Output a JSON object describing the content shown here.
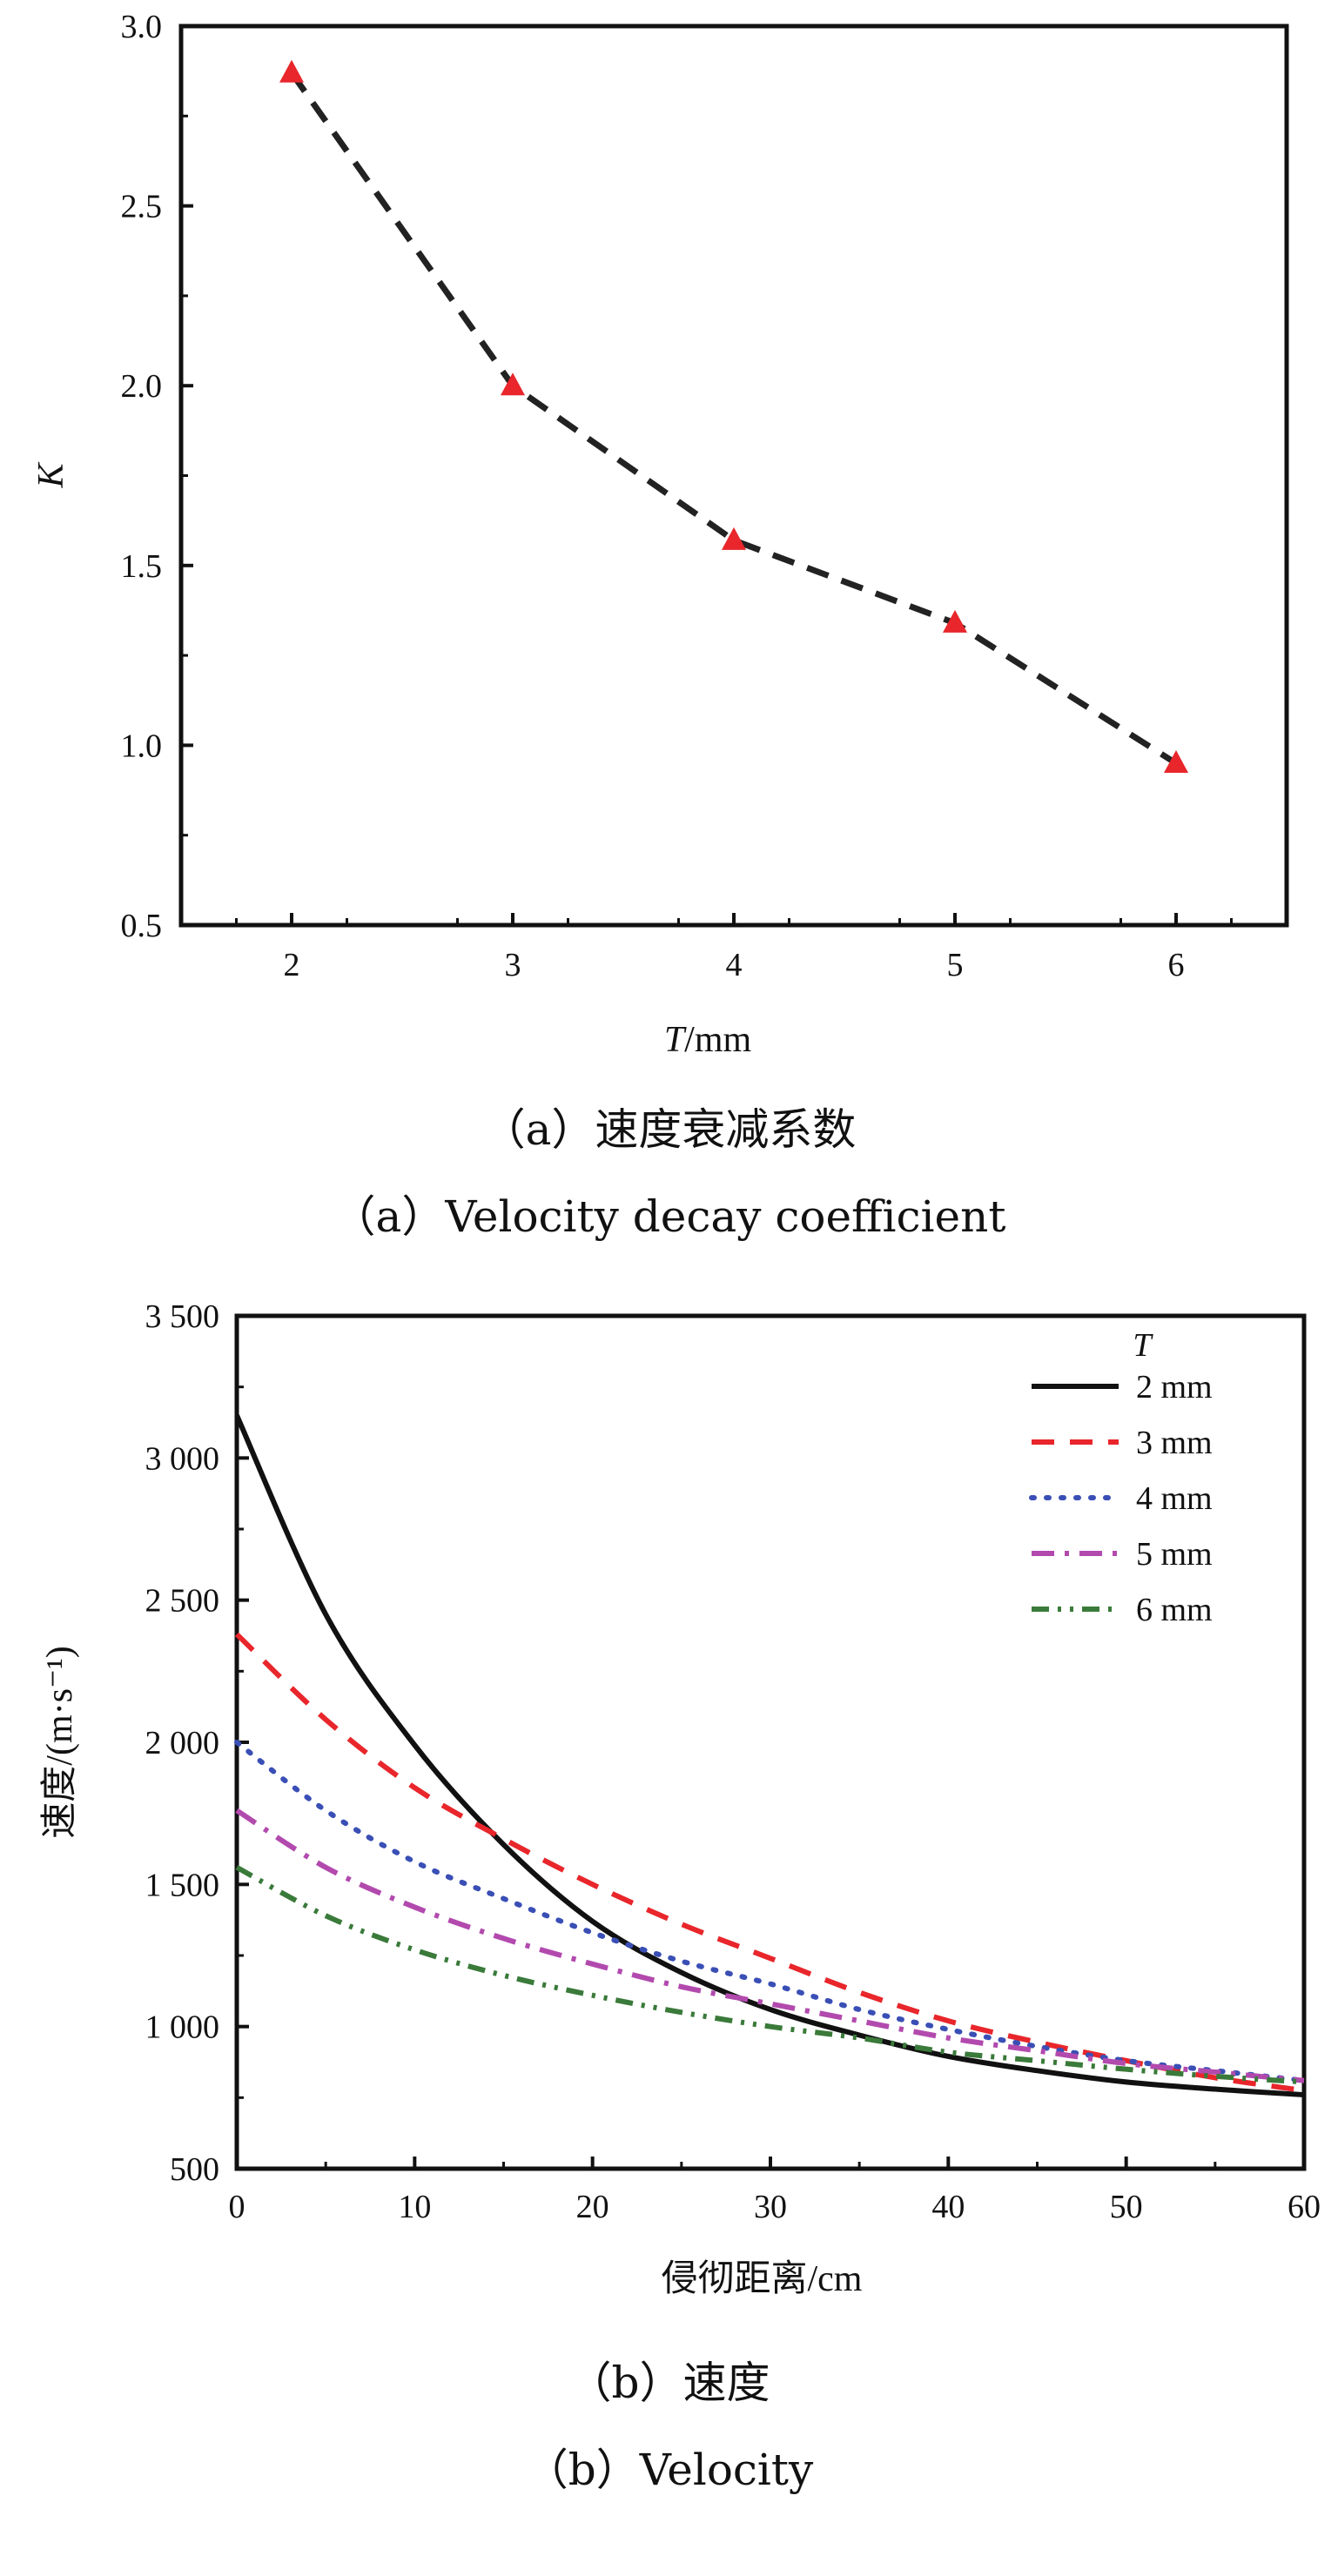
{
  "captions": {
    "a_cn": "（a）速度衰减系数",
    "a_en": "（a）Velocity decay coefficient",
    "b_cn": "（b）速度",
    "b_en": "（b）Velocity"
  },
  "chart_data": [
    {
      "type": "line",
      "xlabel_italic": "T",
      "xlabel_unit": "/mm",
      "ylabel": "K",
      "xlim": [
        1.5,
        6.5
      ],
      "ylim": [
        0.5,
        3.0
      ],
      "xticks": [
        "2",
        "3",
        "4",
        "5",
        "6"
      ],
      "yticks": [
        "0.5",
        "1.0",
        "1.5",
        "2.0",
        "2.5",
        "3.0"
      ],
      "x": [
        2,
        3,
        4,
        5,
        6
      ],
      "y": [
        2.87,
        2.0,
        1.57,
        1.34,
        0.95
      ],
      "line_color": "#222222",
      "marker_color": "#e8262b",
      "line_style": "dashed",
      "marker": "triangle",
      "grid": false
    },
    {
      "type": "line",
      "xlabel": "侵彻距离/cm",
      "ylabel": "速度/(m·s⁻¹)",
      "xlim": [
        0,
        60
      ],
      "ylim": [
        500,
        3500
      ],
      "xticks": [
        "0",
        "10",
        "20",
        "30",
        "40",
        "50",
        "60"
      ],
      "yticks": [
        "500",
        "1 000",
        "1 500",
        "2 000",
        "2 500",
        "3 000",
        "3 500"
      ],
      "legend_title": "T",
      "legend_position": "top-right",
      "grid": false,
      "series": [
        {
          "name": "2 mm",
          "color": "#111111",
          "dash": "solid",
          "x": [
            0,
            5,
            10,
            15,
            20,
            25,
            30,
            35,
            40,
            45,
            50,
            55,
            60
          ],
          "y": [
            3150,
            2450,
            1990,
            1640,
            1370,
            1190,
            1060,
            970,
            895,
            845,
            805,
            780,
            760
          ]
        },
        {
          "name": "3 mm",
          "color": "#e8262b",
          "dash": "dashed",
          "x": [
            0,
            5,
            10,
            15,
            20,
            25,
            30,
            35,
            40,
            45,
            50,
            55,
            60
          ],
          "y": [
            2380,
            2080,
            1840,
            1660,
            1500,
            1360,
            1240,
            1120,
            1020,
            945,
            880,
            820,
            775
          ]
        },
        {
          "name": "4 mm",
          "color": "#3a4fb5",
          "dash": "dotted",
          "x": [
            0,
            5,
            10,
            15,
            20,
            25,
            30,
            35,
            40,
            45,
            50,
            55,
            60
          ],
          "y": [
            2000,
            1760,
            1580,
            1450,
            1330,
            1230,
            1150,
            1060,
            990,
            930,
            880,
            845,
            810
          ]
        },
        {
          "name": "5 mm",
          "color": "#b24aae",
          "dash": "dashdot",
          "x": [
            0,
            5,
            10,
            15,
            20,
            25,
            30,
            35,
            40,
            45,
            50,
            55,
            60
          ],
          "y": [
            1760,
            1560,
            1420,
            1310,
            1220,
            1140,
            1080,
            1020,
            960,
            915,
            870,
            840,
            810
          ]
        },
        {
          "name": "6 mm",
          "color": "#3a7a3a",
          "dash": "dashdotdot",
          "x": [
            0,
            5,
            10,
            15,
            20,
            25,
            30,
            35,
            40,
            45,
            50,
            55,
            60
          ],
          "y": [
            1560,
            1390,
            1270,
            1180,
            1110,
            1050,
            1000,
            960,
            910,
            880,
            850,
            825,
            805
          ]
        }
      ]
    }
  ]
}
